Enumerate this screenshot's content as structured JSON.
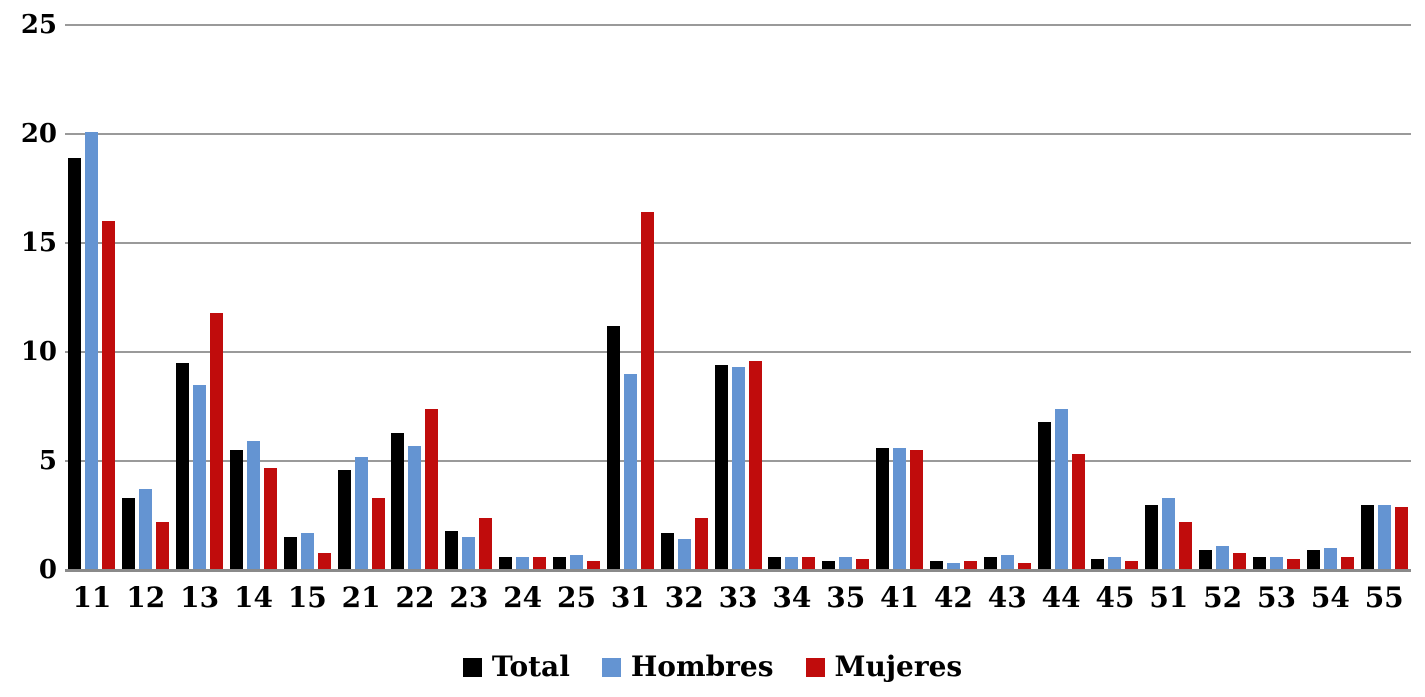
{
  "chart_data": {
    "type": "bar",
    "title": "",
    "xlabel": "",
    "ylabel": "",
    "categories": [
      "11",
      "12",
      "13",
      "14",
      "15",
      "21",
      "22",
      "23",
      "24",
      "25",
      "31",
      "32",
      "33",
      "34",
      "35",
      "41",
      "42",
      "43",
      "44",
      "45",
      "51",
      "52",
      "53",
      "54",
      "55"
    ],
    "series": [
      {
        "name": "Total",
        "color": "#000000",
        "values": [
          18.9,
          3.3,
          9.5,
          5.5,
          1.5,
          4.6,
          6.3,
          1.8,
          0.6,
          0.6,
          11.2,
          1.7,
          9.4,
          0.6,
          0.4,
          5.6,
          0.4,
          0.6,
          6.8,
          0.5,
          3.0,
          0.9,
          0.6,
          0.9,
          3.0
        ]
      },
      {
        "name": "Hombres",
        "color": "#6494D2",
        "values": [
          20.1,
          3.7,
          8.5,
          5.9,
          1.7,
          5.2,
          5.7,
          1.5,
          0.6,
          0.7,
          9.0,
          1.4,
          9.3,
          0.6,
          0.6,
          5.6,
          0.3,
          0.7,
          7.4,
          0.6,
          3.3,
          1.1,
          0.6,
          1.0,
          3.0
        ]
      },
      {
        "name": "Mujeres",
        "color": "#C00C0C",
        "values": [
          16.0,
          2.2,
          11.8,
          4.7,
          0.8,
          3.3,
          7.4,
          2.4,
          0.6,
          0.4,
          16.4,
          2.4,
          9.6,
          0.6,
          0.5,
          5.5,
          0.4,
          0.3,
          5.3,
          0.4,
          2.2,
          0.8,
          0.5,
          0.6,
          2.9
        ]
      }
    ],
    "ylim": [
      0,
      25
    ],
    "yticks": [
      "0",
      "5",
      "10",
      "15",
      "20",
      "25"
    ],
    "grid": true,
    "legend_position": "bottom",
    "gridline_color": "#9a9a9a",
    "axis_color": "#8a8a8a"
  }
}
